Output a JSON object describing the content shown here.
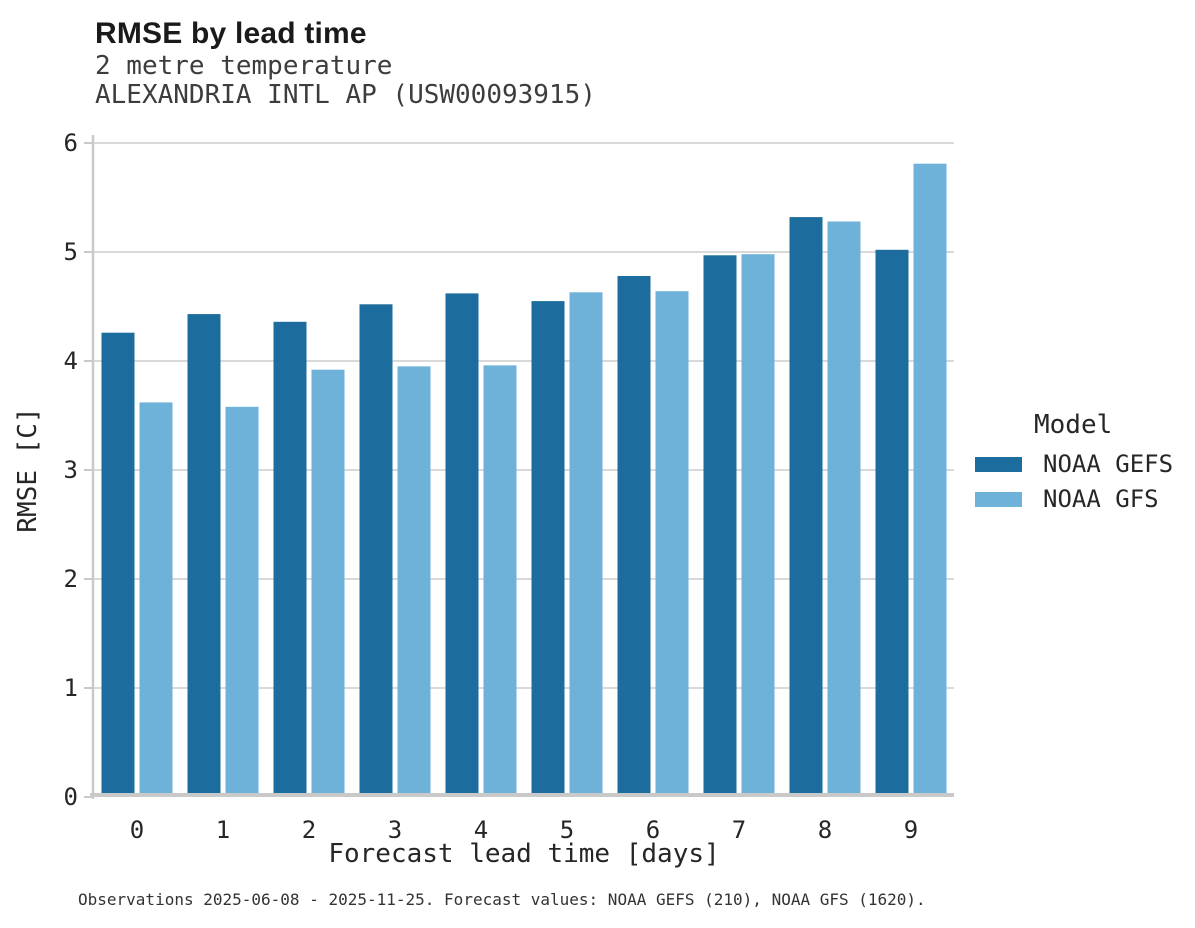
{
  "header": {
    "title": "RMSE by lead time",
    "subtitle1": "2 metre temperature",
    "subtitle2": "ALEXANDRIA INTL AP (USW00093915)"
  },
  "footer": {
    "caption": "Observations 2025-06-08 - 2025-11-25. Forecast values: NOAA GEFS (210), NOAA GFS (1620)."
  },
  "colors": {
    "gefs_bar": "#1c6d9d",
    "gfs_bar": "#6fb2d9",
    "gridline": "#d9d9d9",
    "axis_spine": "#c9c9c9",
    "tick_label": "#262626"
  },
  "chart_data": {
    "type": "bar",
    "title": "RMSE by lead time",
    "subtitle": [
      "2 metre temperature",
      "ALEXANDRIA INTL AP (USW00093915)"
    ],
    "xlabel": "Forecast lead time [days]",
    "ylabel": "RMSE [C]",
    "legend_title": "Model",
    "legend_position": "right",
    "grid": true,
    "categories": [
      "0",
      "1",
      "2",
      "3",
      "4",
      "5",
      "6",
      "7",
      "8",
      "9"
    ],
    "series": [
      {
        "name": "NOAA GEFS",
        "color": "#1c6d9d",
        "values": [
          4.26,
          4.43,
          4.36,
          4.52,
          4.62,
          4.55,
          4.78,
          4.97,
          5.32,
          5.02
        ]
      },
      {
        "name": "NOAA GFS",
        "color": "#6fb2d9",
        "values": [
          3.62,
          3.58,
          3.92,
          3.95,
          3.96,
          4.63,
          4.64,
          4.98,
          5.28,
          5.81
        ]
      }
    ],
    "ylim": [
      0,
      6
    ],
    "yticks": [
      0,
      1,
      2,
      3,
      4,
      5,
      6
    ]
  }
}
